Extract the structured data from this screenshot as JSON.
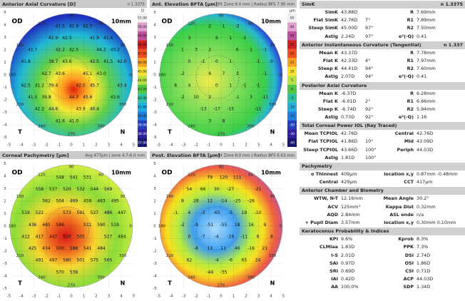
{
  "maps": [
    {
      "title": "Anterior Axial Curvature [D]",
      "info": "n 1.3375",
      "scale_unit": "D",
      "scale": [
        "51.00",
        "50.00",
        "49.00",
        "48.00",
        "47.00",
        "46.00",
        "45.00",
        "44.00",
        "43.00",
        "42.00",
        "41.00",
        "40.00",
        "39.00",
        "38.00",
        "37.00"
      ],
      "values": [
        "41.5",
        "41.9",
        "42.3",
        "42.9",
        "42.5",
        "41.9",
        "41.6",
        "41.7",
        "42.2",
        "42.5",
        "44.2",
        "43.2",
        "41.8",
        "39.7",
        "43.6",
        "42.5",
        "41.5",
        "42.0",
        "42.7",
        "43.6",
        "45.1",
        "43.0",
        "42.5",
        "41.2",
        "39.4",
        "42.0",
        "45.7",
        "43.4",
        "41.5",
        "39.8",
        "44.3",
        "45.6",
        "43.6",
        "42.2",
        "44.6",
        "43.9",
        "40.4",
        "41.6",
        "41.0"
      ]
    },
    {
      "title": "Ant. Elevation BFTA [µm]",
      "info": "Fit Zone 8.0 mm | Radius BFS 7.95 mm",
      "scale_unit": "µm",
      "scale": [
        "50",
        "40",
        "30",
        "25",
        "20",
        "15",
        "10",
        "5",
        "0",
        "-5",
        "-10",
        "-15",
        "-20",
        "-30",
        "-40"
      ],
      "values": [
        "2",
        "1",
        "-2",
        "3",
        "6",
        "1",
        "-1",
        "1",
        "3",
        "2",
        "6",
        "1",
        "-1",
        "0",
        "-1",
        "0",
        "1",
        "-1",
        "0",
        "-2",
        "6",
        "7",
        "3",
        "-1",
        "8",
        "4",
        "0",
        "1",
        "-1",
        "-1",
        "-2",
        "10",
        "2",
        "-1",
        "3",
        "-11",
        "-13",
        "-17",
        "-15",
        "-11",
        "3",
        "8"
      ]
    },
    {
      "title": "Corneal Pachymetry [µm]",
      "info": "Avg 477µm | zone 4.7-6.0 mm",
      "values": [
        "548",
        "541",
        "531",
        "558",
        "537",
        "520",
        "532",
        "544",
        "569",
        "562",
        "504",
        "469",
        "458",
        "463",
        "495",
        "519",
        "522",
        "573",
        "591",
        "527",
        "486",
        "447",
        "436",
        "465",
        "586",
        "511",
        "590",
        "518",
        "412",
        "417",
        "447",
        "510",
        "505",
        "527",
        "484",
        "425",
        "434",
        "500",
        "588",
        "541",
        "484",
        "491",
        "497",
        "580",
        "501",
        "575",
        "565",
        "570",
        "538"
      ]
    },
    {
      "title": "Post. Elevation BFTA [µm]",
      "info": "Fit Zone 8.0 mm | Radius BFS 6.63 mm",
      "values": [
        "79",
        "120",
        "111",
        "54",
        "66",
        "30",
        "-27",
        "-21",
        "9",
        "28",
        "12",
        "-14",
        "-25",
        "-26",
        "-1",
        "4",
        "-3",
        "-65",
        "-5",
        "19",
        "-10",
        "-2",
        "-9",
        "-51",
        "-55",
        "18",
        "16",
        "9",
        "0",
        "-7",
        "-4",
        "-19",
        "-11",
        "6",
        "8",
        "-8",
        "13",
        "11",
        "46",
        "-16",
        "21",
        "62",
        "-4",
        "-6",
        "65",
        "24",
        "-44",
        "-35"
      ]
    }
  ],
  "map_labels": {
    "eye": "OD",
    "zone": "10mm",
    "temporal": "T",
    "nasal": "N"
  },
  "compass": [
    "90",
    "120",
    "150",
    "180",
    "210",
    "240",
    "270",
    "300",
    "330",
    "0",
    "30",
    "60"
  ],
  "axis_ticks": [
    -5,
    -4,
    -3,
    -2,
    -1,
    0,
    1,
    2,
    3,
    4,
    5
  ],
  "table": {
    "sections": [
      {
        "title": "SimK",
        "note": "n 1.3375",
        "rows": [
          {
            "l": "SimK",
            "v": "43.88D",
            "l2": "R",
            "v2": "7.69mm"
          },
          {
            "l": "Flat SimK",
            "v": "42.76D",
            "a": "7°",
            "l2": "R1",
            "v2": "7.89mm"
          },
          {
            "l": "Steep SimK",
            "v": "45.00D",
            "a": "97°",
            "l2": "R2",
            "v2": "7.50mm"
          },
          {
            "l": "Astig",
            "v": "2.24D",
            "a": "97°",
            "l2": "e²(-Q)",
            "v2": "0.41"
          }
        ]
      },
      {
        "title": "Anterior Instantaneous Curvature (Tangential)",
        "note": "n 1.337",
        "rows": [
          {
            "l": "Mean K",
            "v": "43.37D",
            "l2": "R",
            "v2": "7.78mm"
          },
          {
            "l": "Flat K",
            "v": "42.33D",
            "a": "4°",
            "l2": "R1",
            "v2": "7.97mm"
          },
          {
            "l": "Steep K",
            "v": "44.41D",
            "a": "94°",
            "l2": "R2",
            "v2": "7.60mm"
          },
          {
            "l": "Astig",
            "v": "2.07D",
            "a": "94°",
            "l2": "e²(-Q)",
            "v2": "0.41"
          }
        ]
      },
      {
        "title": "Posterior Axial Curvature",
        "rows": [
          {
            "l": "Mean K",
            "v": "-6.37D",
            "l2": "R",
            "v2": "6.28mm"
          },
          {
            "l": "Flat K",
            "v": "-6.01D",
            "a": "2°",
            "l2": "R1",
            "v2": "6.66mm"
          },
          {
            "l": "Steep K",
            "v": "-6.74D",
            "a": "92°",
            "l2": "R2",
            "v2": "5.94mm"
          },
          {
            "l": "Astig",
            "v": "0.73D",
            "a": "92°",
            "l2": "e²(-Q)",
            "v2": "1.16"
          }
        ]
      },
      {
        "title": "Total Corneal Power IOL (Ray Traced)",
        "rows": [
          {
            "l": "Mean TCPIOL",
            "v": "42.76D",
            "l2": "Central",
            "v2": "42.76D"
          },
          {
            "l": "Flat TCPIOL",
            "v": "41.86D",
            "a": "10°",
            "l2": "Mid",
            "v2": "43.09D"
          },
          {
            "l": "Steep TCPIOL",
            "v": "43.66D",
            "a": "100°",
            "l2": "Periph",
            "v2": "44.03D"
          },
          {
            "l": "Astig",
            "v": "1.81D",
            "a": "100°"
          }
        ]
      },
      {
        "title": "Pachymetry",
        "rows": [
          {
            "l": "o Thinnest",
            "v": "409µm",
            "l2": "location x,y",
            "v2": "0.87mm -0.48mm"
          },
          {
            "l": "Central",
            "v": "429µm",
            "l2": "CCT",
            "v2": "417µm"
          }
        ]
      },
      {
        "title": "Anterior Chamber and Biometry",
        "rows": [
          {
            "l": "WTW, N-T",
            "v": "12.16mm",
            "l2": "Mean Angle",
            "v2": "30.2°"
          },
          {
            "l": "ACV",
            "v": "125mm³",
            "l2": "Kappa Dist",
            "v2": "0.32mm"
          },
          {
            "l": "AQD",
            "v": "2.84mm",
            "l2": "ASL ende",
            "v2": "n/a"
          },
          {
            "l": "+ Pupil Diam",
            "v": "3.57mm",
            "l2": "location x,y",
            "v2": "0.30mm 0.10mm"
          }
        ]
      },
      {
        "title": "Keratoconus Probability & Indices",
        "rows": [
          {
            "l": "KPI",
            "v": "9.6%",
            "l2": "Kprob",
            "v2": "8.3%"
          },
          {
            "l": "CLMIaa",
            "v": "1.83D",
            "l2": "PPK",
            "v2": "7.3%"
          },
          {
            "l": "I-S",
            "v": "2.01D",
            "l2": "DSI",
            "v2": "2.74D"
          },
          {
            "l": "SAI",
            "v": "0.97D",
            "l2": "OSI",
            "v2": "1.86D"
          },
          {
            "l": "SRI",
            "v": "0.69D",
            "l2": "CSI",
            "v2": "0.71D"
          },
          {
            "l": "IAI",
            "v": "0.42D",
            "l2": "ACP",
            "v2": "44.03D"
          },
          {
            "l": "AA",
            "v": "100.0%",
            "l2": "SDP",
            "v2": "1.34D"
          }
        ]
      }
    ]
  }
}
